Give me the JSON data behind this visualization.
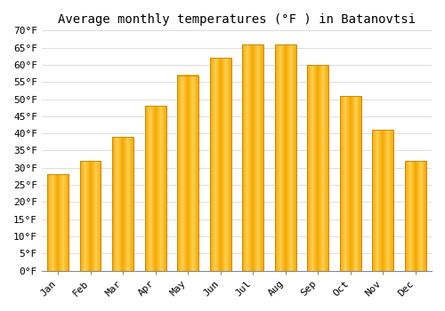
{
  "title": "Average monthly temperatures (°F ) in Batanovtsi",
  "months": [
    "Jan",
    "Feb",
    "Mar",
    "Apr",
    "May",
    "Jun",
    "Jul",
    "Aug",
    "Sep",
    "Oct",
    "Nov",
    "Dec"
  ],
  "values": [
    28,
    32,
    39,
    48,
    57,
    62,
    66,
    66,
    60,
    51,
    41,
    32
  ],
  "bar_color_center": "#FFD050",
  "bar_color_edge": "#F5A800",
  "bar_edge_color": "#CC8800",
  "ylim": [
    0,
    70
  ],
  "yticks": [
    0,
    5,
    10,
    15,
    20,
    25,
    30,
    35,
    40,
    45,
    50,
    55,
    60,
    65,
    70
  ],
  "ytick_labels": [
    "0°F",
    "5°F",
    "10°F",
    "15°F",
    "20°F",
    "25°F",
    "30°F",
    "35°F",
    "40°F",
    "45°F",
    "50°F",
    "55°F",
    "60°F",
    "65°F",
    "70°F"
  ],
  "background_color": "#FFFFFF",
  "grid_color": "#DDDDDD",
  "title_fontsize": 10,
  "tick_fontsize": 8,
  "bar_width": 0.65
}
